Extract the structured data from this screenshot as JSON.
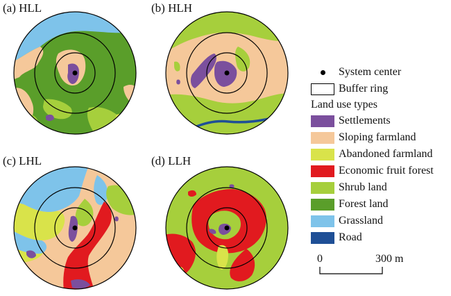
{
  "panels": [
    {
      "id": "a",
      "label": "(a) HLL"
    },
    {
      "id": "b",
      "label": "(b) HLH"
    },
    {
      "id": "c",
      "label": "(c) LHL"
    },
    {
      "id": "d",
      "label": "(d) LLH"
    }
  ],
  "legend": {
    "center_label": "System center",
    "ring_label": "Buffer ring",
    "title": "Land use types",
    "items": [
      {
        "key": "settlements",
        "label": "Settlements",
        "color": "#7b4f9d"
      },
      {
        "key": "sloping",
        "label": "Sloping farmland",
        "color": "#f5c89a"
      },
      {
        "key": "abandoned",
        "label": "Abandoned farmland",
        "color": "#d9e34a"
      },
      {
        "key": "economic",
        "label": "Economic fruit forest",
        "color": "#e11a1f"
      },
      {
        "key": "shrub",
        "label": "Shrub land",
        "color": "#a6cf3c"
      },
      {
        "key": "forest",
        "label": "Forest land",
        "color": "#5a9e2a"
      },
      {
        "key": "grassland",
        "label": "Grassland",
        "color": "#7ec3ea"
      },
      {
        "key": "road",
        "label": "Road",
        "color": "#1f4f96"
      }
    ]
  },
  "scale": {
    "start": "0",
    "end": "300 m"
  }
}
